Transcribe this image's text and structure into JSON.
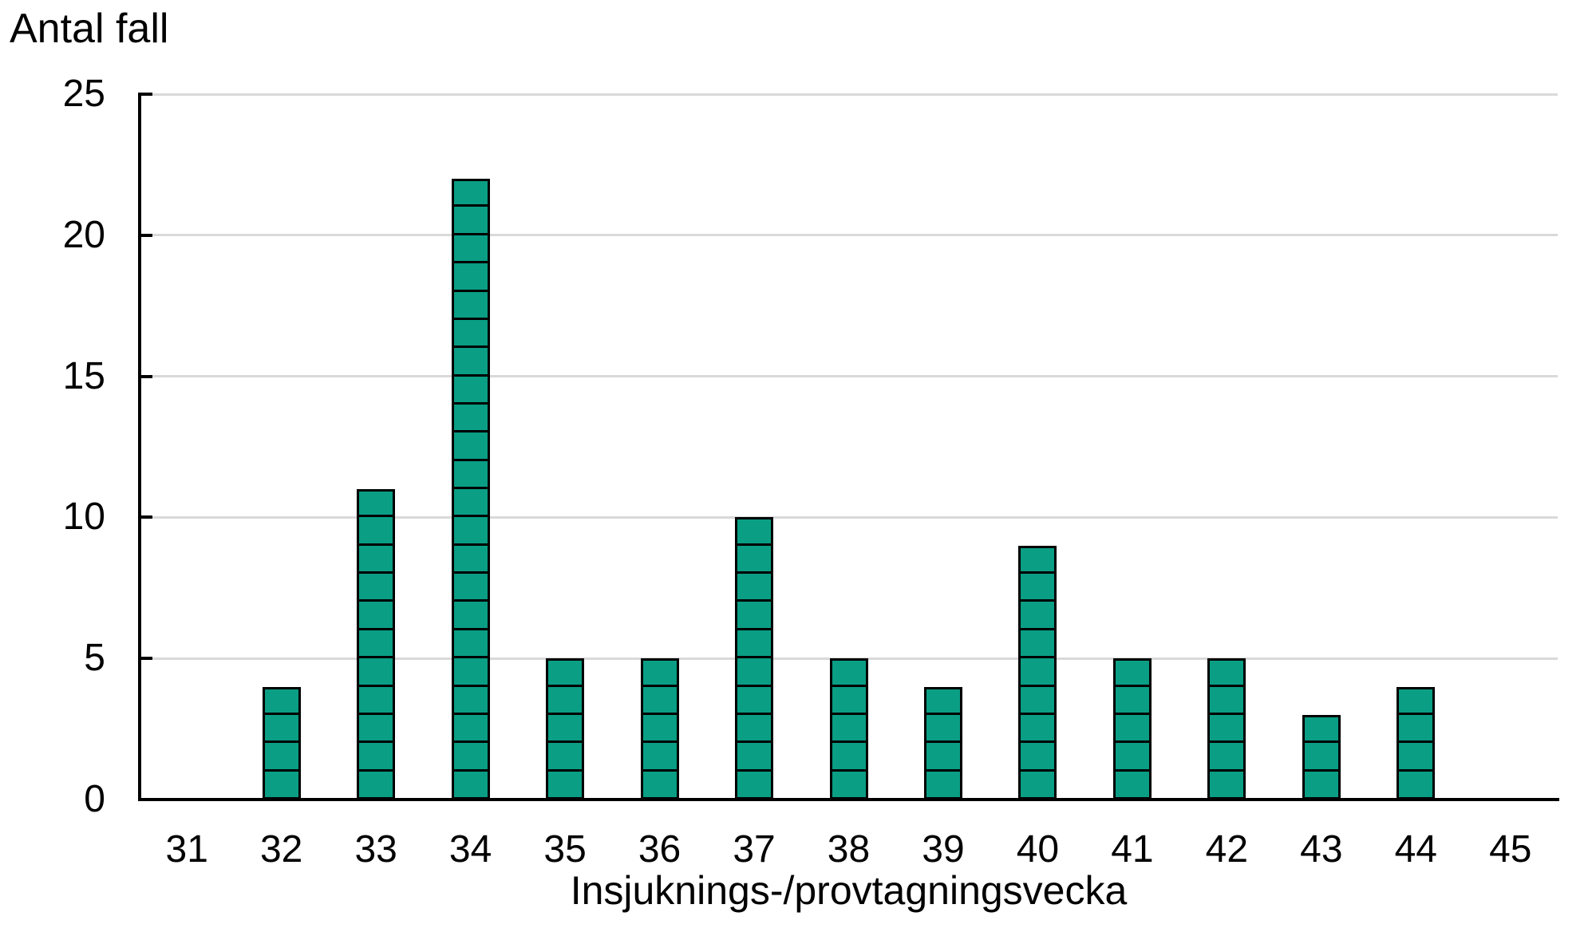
{
  "chart_data": {
    "type": "bar",
    "corner_label": "Antal fall",
    "xlabel": "Insjuknings-/provtagningsvecka",
    "categories": [
      31,
      32,
      33,
      34,
      35,
      36,
      37,
      38,
      39,
      40,
      41,
      42,
      43,
      44,
      45
    ],
    "values": [
      0,
      4,
      11,
      22,
      5,
      5,
      10,
      5,
      4,
      9,
      5,
      5,
      3,
      4,
      0
    ],
    "ylim": [
      0,
      25
    ],
    "yticks": [
      0,
      5,
      10,
      15,
      20,
      25
    ],
    "grid": true,
    "unit_blocks": true,
    "colors": {
      "bar_fill": "#0a9e84",
      "bar_border": "#000000",
      "gridline": "#d9d9d9",
      "axis": "#000000",
      "text": "#000000",
      "background": "#ffffff"
    }
  }
}
